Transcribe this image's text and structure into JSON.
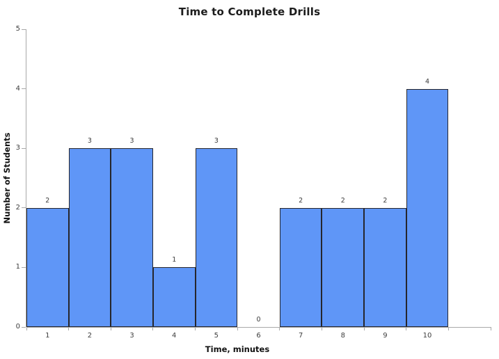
{
  "page": {
    "title": "Time to Complete Drills"
  },
  "chart_data": {
    "type": "bar",
    "title": "Time to Complete Drills",
    "xlabel": "Time, minutes",
    "ylabel": "Number of Students",
    "categories": [
      "1",
      "2",
      "3",
      "4",
      "5",
      "6",
      "7",
      "8",
      "9",
      "10"
    ],
    "values": [
      2,
      3,
      3,
      1,
      3,
      0,
      2,
      2,
      2,
      4
    ],
    "value_labels": [
      "2",
      "3",
      "3",
      "1",
      "3",
      "0",
      "2",
      "2",
      "2",
      "4"
    ],
    "ylim": [
      0,
      5
    ],
    "yticks": [
      0,
      1,
      2,
      3,
      4,
      5
    ],
    "grid": false,
    "legend": null,
    "bar_gap": 0,
    "layout_hint": "histogram-style contiguous bars, empty slot at category 6, extra unlabeled slot after category 10",
    "colors": {
      "bar_fill": "#5F96F7",
      "bar_border": "#26262C",
      "axis": "#A8A8A8",
      "title_text": "#1C1C1C",
      "axis_title_text": "#111111",
      "tick_text": "#3D3D3D",
      "value_label_text": "#3A3A3A",
      "background": "#FFFFFF"
    }
  }
}
